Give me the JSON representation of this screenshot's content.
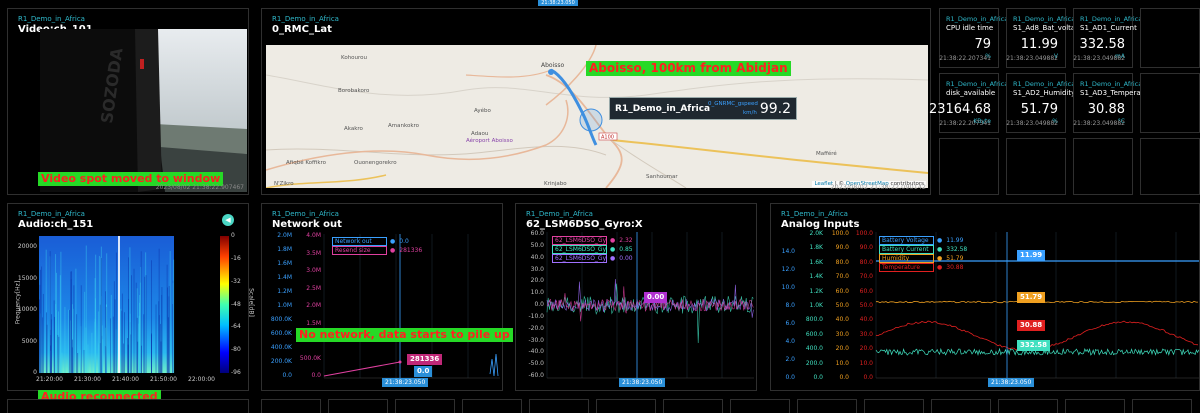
{
  "top_tab": {
    "label": "21:38:23.050"
  },
  "video": {
    "tag": "R1_Demo_in_Africa",
    "title": "Video:ch_101",
    "sign_text": "SOZODA",
    "annotation": "Video spot moved to window",
    "timestamp": "2023/08/02 21:38:22.907467"
  },
  "map": {
    "tag": "R1_Demo_in_Africa",
    "title": "0_RMC_Lat",
    "annotation": "Aboisso, 100km from Abidjan",
    "places": [
      {
        "name": "Kohourou"
      },
      {
        "name": "Borobakoro"
      },
      {
        "name": "Ayébo"
      },
      {
        "name": "Akakro"
      },
      {
        "name": "Amankokro"
      },
      {
        "name": "Adaou"
      },
      {
        "name": "Aéroport Aboisso"
      },
      {
        "name": "Afiqbé Koffikro"
      },
      {
        "name": "Ouonengorekro"
      },
      {
        "name": "N'Zikro"
      },
      {
        "name": "Krinjabo"
      },
      {
        "name": "Sanhoumar"
      },
      {
        "name": "Mafféré"
      },
      {
        "name": "Aboisso"
      }
    ],
    "road_label": "A100",
    "popup": {
      "title": "R1_Demo_in_Africa",
      "key": "0_GNRMC_gspeed",
      "unit": "km/h",
      "value": "99.2"
    },
    "attribution_leaflet": "Leaflet",
    "attribution_sep": " | © ",
    "attribution_osm": "OpenStreetMap",
    "attribution_tail": " contributors",
    "timestamp": "2023/08/02 21:38:22.090142"
  },
  "stats": [
    {
      "tag": "R1_Demo_in_Africa",
      "title": "CPU idle time",
      "value": "79",
      "unit": "%",
      "time": "21:38:22.207341"
    },
    {
      "tag": "R1_Demo_in_Africa",
      "title": "S1_Ad8_Bat_voltage",
      "value": "11.99",
      "unit": "V",
      "time": "21:38:23.049882"
    },
    {
      "tag": "R1_Demo_in_Africa",
      "title": "S1_AD1_Current",
      "value": "332.58",
      "unit": "mA",
      "time": "21:38:23.049882"
    },
    {
      "tag": "R1_Demo_in_Africa",
      "title": "disk_available",
      "value": "23164.68",
      "unit": "KByte",
      "time": "21:38:22.207341"
    },
    {
      "tag": "R1_Demo_in_Africa",
      "title": "S1_AD2_Humidity",
      "value": "51.79",
      "unit": "%",
      "time": "21:38:23.049882"
    },
    {
      "tag": "R1_Demo_in_Africa",
      "title": "S1_AD3_Temperature",
      "value": "30.88",
      "unit": "°C",
      "time": "21:38:23.049882"
    }
  ],
  "audio": {
    "tag": "R1_Demo_in_Africa",
    "title": "Audio:ch_151",
    "annotation": "Audio reconnected",
    "ylabel": "Frequency[Hz]",
    "cbar_label": "Scale[dB]",
    "yticks": [
      "20000",
      "15000",
      "10000",
      "5000",
      "0"
    ],
    "xticks": [
      "21:20:00",
      "21:30:00",
      "21:40:00",
      "21:50:00",
      "22:00:00"
    ],
    "cbar_ticks": [
      "0",
      "-16",
      "-32",
      "-48",
      "-64",
      "-80",
      "-96"
    ]
  },
  "network": {
    "tag": "R1_Demo_in_Africa",
    "title": "Network out",
    "annotation": "No network, data starts to pile up",
    "left_axis": [
      "2.0M",
      "1.8M",
      "1.6M",
      "1.4M",
      "1.2M",
      "1.0M",
      "800.0K",
      "600.0K",
      "400.0K",
      "200.0K",
      "0.0"
    ],
    "right_axis": [
      "4.0M",
      "3.5M",
      "3.0M",
      "2.5M",
      "2.0M",
      "1.5M",
      "1.0M",
      "500.0K",
      "0.0"
    ],
    "legend": [
      {
        "name": "Network out",
        "value": "0.0",
        "color": "#3aa0ff"
      },
      {
        "name": "Resend size",
        "value": "281336",
        "color": "#e040a0"
      }
    ],
    "tip_resend": "281336",
    "tip_net": "0.0",
    "cursor_time": "21:38:23.050"
  },
  "gyro": {
    "tag": "R1_Demo_in_Africa",
    "title": "62_LSM6DSO_Gyro:X",
    "left_axis": [
      "60.0",
      "50.0",
      "40.0",
      "30.0",
      "20.0",
      "10.0",
      "0.0",
      "-10.0",
      "-20.0",
      "-30.0",
      "-40.0",
      "-50.0",
      "-60.0"
    ],
    "legend": [
      {
        "name": "62_LSM6DSO_Gyro",
        "value": "2.32",
        "color": "#e040a0"
      },
      {
        "name": "62_LSM6DSO_Gyro",
        "value": "0.85",
        "color": "#40e0c0"
      },
      {
        "name": "62_LSM6DSO_Gyro",
        "value": "0.00",
        "color": "#a070ff"
      }
    ],
    "tip": "0.00",
    "cursor_time": "21:38:23.050"
  },
  "analog": {
    "tag": "R1_Demo_in_Africa",
    "title": "Analog Inputs",
    "axis1": [
      "14.0",
      "12.0",
      "10.0",
      "8.0",
      "6.0",
      "4.0",
      "2.0",
      "0.0"
    ],
    "axis2": [
      "2.0K",
      "1.8K",
      "1.6K",
      "1.4K",
      "1.2K",
      "1.0K",
      "800.0",
      "600.0",
      "400.0",
      "200.0",
      "0.0"
    ],
    "axis3": [
      "100.0",
      "90.0",
      "80.0",
      "70.0",
      "60.0",
      "50.0",
      "40.0",
      "30.0",
      "20.0",
      "10.0",
      "0.0"
    ],
    "axis4": [
      "100.0",
      "90.0",
      "80.0",
      "70.0",
      "60.0",
      "50.0",
      "40.0",
      "30.0",
      "20.0",
      "10.0",
      "0.0"
    ],
    "legend": [
      {
        "name": "Battery Voltage",
        "value": "11.99",
        "color": "#3aa0ff"
      },
      {
        "name": "Battery Current",
        "value": "332.58",
        "color": "#40e0c0"
      },
      {
        "name": "Humidity",
        "value": "51.79",
        "color": "#f0a020"
      },
      {
        "name": "Temperature",
        "value": "30.88",
        "color": "#e02020"
      }
    ],
    "tips": [
      {
        "value": "11.99",
        "color": "#3aa0ff"
      },
      {
        "value": "51.79",
        "color": "#f0a020"
      },
      {
        "value": "30.88",
        "color": "#e02020"
      },
      {
        "value": "332.58",
        "color": "#40e0c0"
      }
    ],
    "cursor_time": "21:38:23.050"
  }
}
